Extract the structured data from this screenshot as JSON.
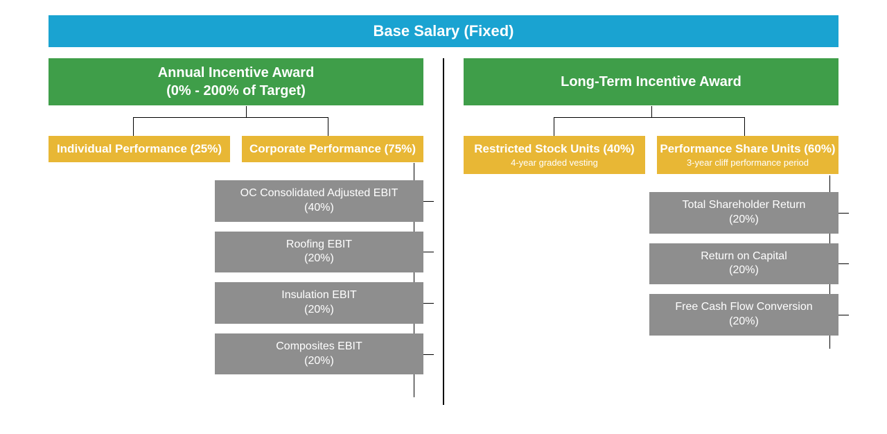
{
  "colors": {
    "top": "#1aa3d1",
    "green": "#3f9e49",
    "yellow": "#e8b735",
    "gray": "#8e8e8e",
    "line": "#000000"
  },
  "topTitle": "Base Salary (Fixed)",
  "left": {
    "headerLine1": "Annual Incentive Award",
    "headerLine2": "(0% - 200% of Target)",
    "yellowA": "Individual Performance (25%)",
    "yellowB": "Corporate Performance (75%)",
    "grays": [
      {
        "t": "OC Consolidated Adjusted EBIT",
        "p": "(40%)"
      },
      {
        "t": "Roofing EBIT",
        "p": "(20%)"
      },
      {
        "t": "Insulation EBIT",
        "p": "(20%)"
      },
      {
        "t": "Composites EBIT",
        "p": "(20%)"
      }
    ]
  },
  "right": {
    "headerLine1": "Long-Term Incentive Award",
    "yellowA": "Restricted Stock Units (40%)",
    "yellowASub": "4-year graded vesting",
    "yellowB": "Performance Share Units (60%)",
    "yellowBSub": "3-year cliff performance period",
    "grays": [
      {
        "t": "Total Shareholder Return",
        "p": "(20%)"
      },
      {
        "t": "Return on Capital",
        "p": "(20%)"
      },
      {
        "t": "Free Cash Flow Conversion",
        "p": "(20%)"
      }
    ]
  }
}
